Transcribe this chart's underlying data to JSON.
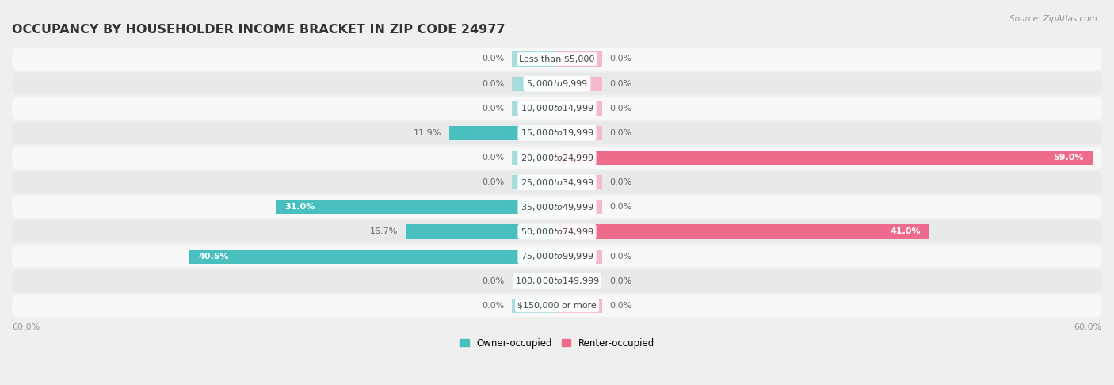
{
  "title": "OCCUPANCY BY HOUSEHOLDER INCOME BRACKET IN ZIP CODE 24977",
  "source": "Source: ZipAtlas.com",
  "categories": [
    "Less than $5,000",
    "$5,000 to $9,999",
    "$10,000 to $14,999",
    "$15,000 to $19,999",
    "$20,000 to $24,999",
    "$25,000 to $34,999",
    "$35,000 to $49,999",
    "$50,000 to $74,999",
    "$75,000 to $99,999",
    "$100,000 to $149,999",
    "$150,000 or more"
  ],
  "owner_occupied": [
    0.0,
    0.0,
    0.0,
    11.9,
    0.0,
    0.0,
    31.0,
    16.7,
    40.5,
    0.0,
    0.0
  ],
  "renter_occupied": [
    0.0,
    0.0,
    0.0,
    0.0,
    59.0,
    0.0,
    0.0,
    41.0,
    0.0,
    0.0,
    0.0
  ],
  "owner_color": "#49BFBF",
  "renter_color": "#EE6B8B",
  "owner_color_light": "#A8DCDC",
  "renter_color_light": "#F5B8CC",
  "stub_size": 5.0,
  "bar_height": 0.58,
  "xlim": 60.0,
  "background_color": "#efefef",
  "row_bg_light": "#f8f8f8",
  "row_bg_dark": "#e8e9ea",
  "title_fontsize": 11.5,
  "label_fontsize": 8.0,
  "value_fontsize": 8.0
}
